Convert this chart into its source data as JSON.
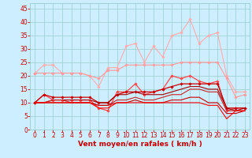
{
  "x": [
    0,
    1,
    2,
    3,
    4,
    5,
    6,
    7,
    8,
    9,
    10,
    11,
    12,
    13,
    14,
    15,
    16,
    17,
    18,
    19,
    20,
    21,
    22,
    23
  ],
  "series": [
    {
      "name": "rafales_max",
      "color": "#ffaaaa",
      "linewidth": 0.8,
      "marker": "D",
      "markersize": 1.8,
      "y": [
        21,
        24,
        24,
        21,
        21,
        21,
        20,
        16,
        23,
        23,
        31,
        32,
        25,
        31,
        27,
        35,
        36,
        41,
        32,
        35,
        36,
        20,
        14,
        14
      ]
    },
    {
      "name": "rafales_mean",
      "color": "#ff9999",
      "linewidth": 0.8,
      "marker": "D",
      "markersize": 1.8,
      "y": [
        21,
        21,
        21,
        21,
        21,
        21,
        20,
        19,
        22,
        22,
        24,
        24,
        24,
        24,
        24,
        24,
        25,
        25,
        25,
        25,
        25,
        19,
        12,
        13
      ]
    },
    {
      "name": "vent_max",
      "color": "#ff4444",
      "linewidth": 0.9,
      "marker": "D",
      "markersize": 1.8,
      "y": [
        10,
        13,
        11,
        11,
        11,
        11,
        11,
        8,
        7,
        14,
        14,
        17,
        13,
        14,
        15,
        20,
        19,
        20,
        18,
        17,
        18,
        7,
        8,
        8
      ]
    },
    {
      "name": "vent_mean",
      "color": "#cc0000",
      "linewidth": 0.9,
      "marker": "D",
      "markersize": 1.8,
      "y": [
        10,
        13,
        12,
        12,
        12,
        12,
        12,
        10,
        10,
        13,
        14,
        14,
        14,
        14,
        15,
        16,
        17,
        17,
        17,
        17,
        17,
        8,
        8,
        8
      ]
    },
    {
      "name": "vent_min_line1",
      "color": "#aa0000",
      "linewidth": 0.8,
      "marker": null,
      "markersize": 0,
      "y": [
        10,
        10,
        11,
        11,
        11,
        11,
        11,
        10,
        10,
        13,
        13,
        14,
        13,
        13,
        13,
        14,
        15,
        16,
        16,
        15,
        15,
        8,
        7,
        8
      ]
    },
    {
      "name": "vent_min_line2",
      "color": "#cc2222",
      "linewidth": 0.8,
      "marker": null,
      "markersize": 0,
      "y": [
        10,
        10,
        11,
        11,
        10,
        10,
        10,
        9,
        9,
        11,
        11,
        12,
        11,
        11,
        12,
        13,
        13,
        15,
        15,
        14,
        14,
        7,
        7,
        7
      ]
    },
    {
      "name": "vent_base1",
      "color": "#cc0000",
      "linewidth": 0.8,
      "marker": null,
      "markersize": 0,
      "y": [
        10,
        10,
        10,
        10,
        10,
        10,
        10,
        9,
        9,
        10,
        10,
        11,
        10,
        10,
        10,
        11,
        11,
        12,
        12,
        10,
        10,
        6,
        6,
        7
      ]
    },
    {
      "name": "vent_base2",
      "color": "#ff0000",
      "linewidth": 0.8,
      "marker": null,
      "markersize": 0,
      "y": [
        10,
        10,
        10,
        10,
        10,
        10,
        10,
        8,
        8,
        10,
        10,
        10,
        10,
        10,
        10,
        10,
        10,
        10,
        10,
        9,
        9,
        4,
        7,
        7
      ]
    }
  ],
  "xlabel": "Vent moyen/en rafales ( km/h )",
  "xlim": [
    -0.5,
    23.5
  ],
  "ylim": [
    0,
    47
  ],
  "yticks": [
    0,
    5,
    10,
    15,
    20,
    25,
    30,
    35,
    40,
    45
  ],
  "xticks": [
    0,
    1,
    2,
    3,
    4,
    5,
    6,
    7,
    8,
    9,
    10,
    11,
    12,
    13,
    14,
    15,
    16,
    17,
    18,
    19,
    20,
    21,
    22,
    23
  ],
  "background_color": "#cceeff",
  "grid_color": "#99cccc",
  "tick_color": "#cc0000",
  "label_color": "#cc0000",
  "xlabel_fontsize": 6.5,
  "tick_fontsize": 5.5
}
